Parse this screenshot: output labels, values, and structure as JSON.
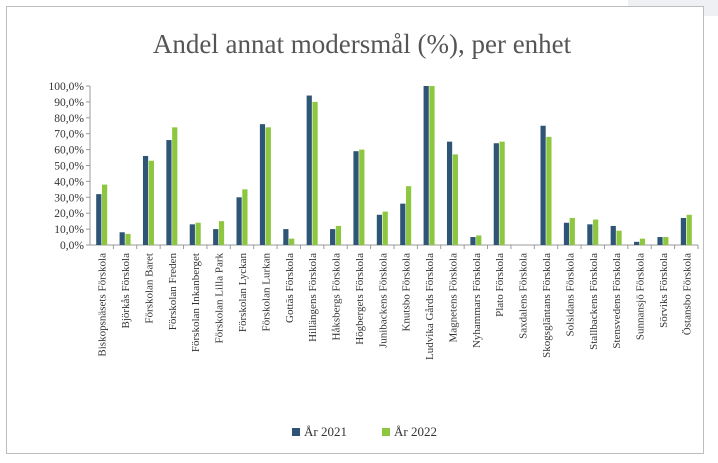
{
  "chart_data": {
    "type": "bar",
    "title": "Andel annat modersmål (%), per enhet",
    "xlabel": "",
    "ylabel": "",
    "ylim": [
      0,
      100
    ],
    "yticks": [
      "0,0%",
      "10,0%",
      "20,0%",
      "30,0%",
      "40,0%",
      "50,0%",
      "60,0%",
      "70,0%",
      "80,0%",
      "90,0%",
      "100,0%"
    ],
    "grid": false,
    "legend_position": "bottom",
    "categories": [
      "Biskopsnäsets Förskola",
      "Björkås Förskola",
      "Förskolan Baret",
      "Förskolan Freden",
      "Förskolan Inkanberget",
      "Förskolan Lilla Park",
      "Förskolan Lyckan",
      "Förskolan Lurkan",
      "Gottäs Förskola",
      "Hillängens Förskola",
      "Håksbergs Förskola",
      "Högbergets Förskola",
      "Junibackens Förskola",
      "Knutsbo Förskola",
      "Ludvika Gårds Förskola",
      "Magnetens Förskola",
      "Nyhammars Förskola",
      "Plato Förskola",
      "Saxdalens Förskola",
      "Skogsgläntans Förskola",
      "Solsidans Förskola",
      "Stallbackens Förskola",
      "Stensvedens Förskola",
      "Sunnansjö Förskola",
      "Sörviks Förskola",
      "Östansbo Förskola"
    ],
    "series": [
      {
        "name": "År 2021",
        "color": "#2e5575",
        "values": [
          32,
          8,
          56,
          66,
          13,
          10,
          30,
          76,
          10,
          94,
          10,
          59,
          19,
          26,
          100,
          65,
          5,
          64,
          0,
          75,
          14,
          13,
          12,
          2,
          5,
          17
        ]
      },
      {
        "name": "År 2022",
        "color": "#8dc63f",
        "values": [
          38,
          7,
          53,
          74,
          14,
          15,
          35,
          74,
          4,
          90,
          12,
          60,
          21,
          37,
          100,
          57,
          6,
          65,
          0,
          68,
          17,
          16,
          9,
          4,
          5,
          19
        ]
      }
    ]
  }
}
